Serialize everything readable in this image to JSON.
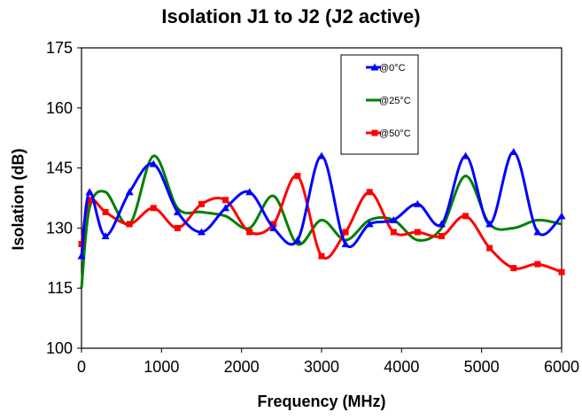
{
  "chart_data": {
    "type": "line",
    "title": "Isolation J1 to J2 (J2 active)",
    "xlabel": "Frequency (MHz)",
    "ylabel": "Isolation (dB)",
    "xlim": [
      0,
      6000
    ],
    "ylim": [
      100,
      175
    ],
    "xticks": [
      0,
      1000,
      2000,
      3000,
      4000,
      5000,
      6000
    ],
    "yticks": [
      100,
      115,
      130,
      145,
      160,
      175
    ],
    "grid": true,
    "legend_position": "top-right",
    "series": [
      {
        "name": "@0°C",
        "color": "#0000FF",
        "marker": "triangle",
        "x": [
          0,
          100,
          300,
          600,
          900,
          1200,
          1500,
          1800,
          2100,
          2400,
          2700,
          3000,
          3300,
          3600,
          3900,
          4200,
          4500,
          4800,
          5100,
          5400,
          5700,
          6000
        ],
        "y": [
          123,
          139,
          128,
          139,
          146,
          134,
          129,
          135,
          139,
          130,
          127,
          148,
          126,
          131,
          132,
          136,
          131,
          148,
          131,
          149,
          129,
          133
        ]
      },
      {
        "name": "@25°C",
        "color": "#008000",
        "marker": "none",
        "x": [
          0,
          100,
          300,
          600,
          900,
          1200,
          1500,
          1800,
          2100,
          2400,
          2700,
          3000,
          3300,
          3600,
          3900,
          4200,
          4500,
          4800,
          5100,
          5400,
          5700,
          6000
        ],
        "y": [
          115,
          135,
          139,
          131,
          148,
          135,
          134,
          133,
          130,
          138,
          126,
          132,
          127,
          132,
          132,
          127,
          130,
          143,
          131,
          130,
          132,
          131
        ]
      },
      {
        "name": "@50°C",
        "color": "#FF0000",
        "marker": "square",
        "x": [
          0,
          100,
          300,
          600,
          900,
          1200,
          1500,
          1800,
          2100,
          2400,
          2700,
          3000,
          3300,
          3600,
          3900,
          4200,
          4500,
          4800,
          5100,
          5400,
          5700,
          6000
        ],
        "y": [
          126,
          137,
          134,
          131,
          135,
          130,
          136,
          137,
          129,
          131,
          143,
          123,
          129,
          139,
          129,
          129,
          128,
          133,
          125,
          120,
          121,
          119
        ]
      }
    ]
  }
}
